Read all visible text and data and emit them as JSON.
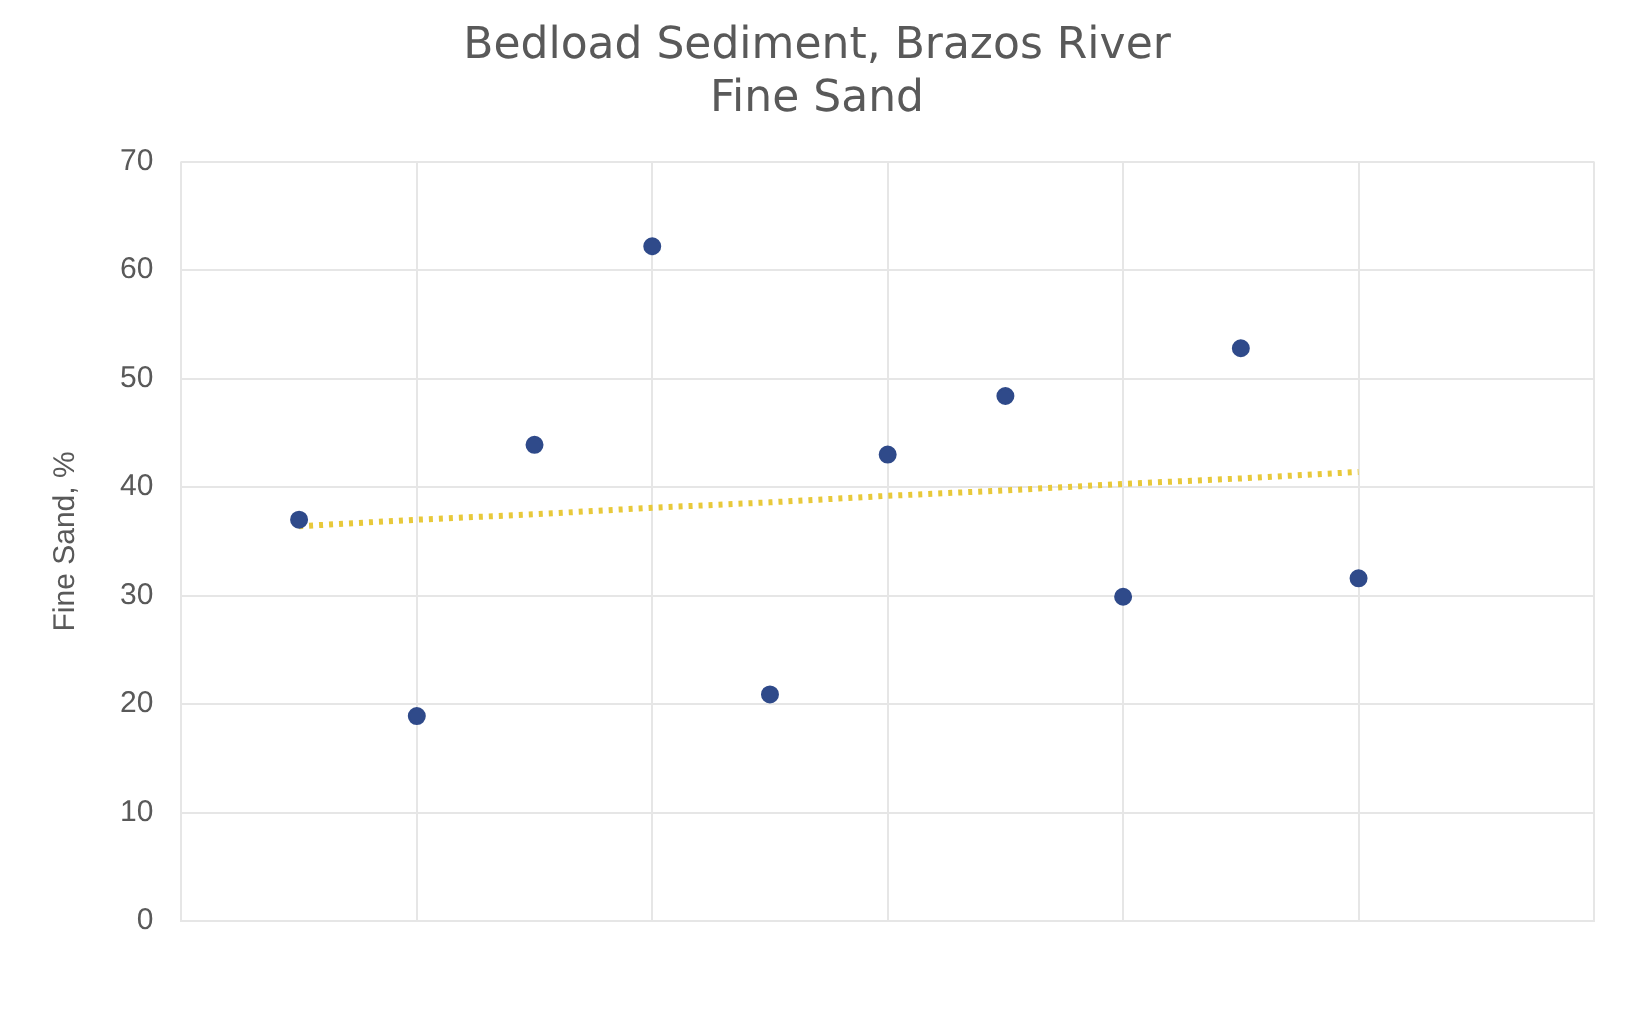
{
  "chart_data": {
    "type": "scatter",
    "title": "Bedload Sediment, Brazos River",
    "subtitle": "Fine Sand",
    "ylabel": "Fine Sand, %",
    "categories": [
      null,
      null,
      null,
      null,
      null,
      null,
      null,
      null,
      null,
      null
    ],
    "ylim": [
      0,
      70
    ],
    "yticks": [
      0,
      10,
      20,
      30,
      40,
      50,
      60,
      70
    ],
    "grid": true,
    "marker": "circle",
    "series": [
      {
        "color": "#2f4a8a",
        "values": [
          37.0,
          18.9,
          43.9,
          62.2,
          20.9,
          43.0,
          48.4,
          29.9,
          52.8,
          31.6
        ]
      },
      {
        "type": "line",
        "color": "#e8c93a",
        "line_style": "dotted",
        "marker": "none",
        "values": [
          36.4,
          37.0,
          37.5,
          38.1,
          38.6,
          39.2,
          39.7,
          40.3,
          40.8,
          41.4
        ]
      }
    ]
  }
}
